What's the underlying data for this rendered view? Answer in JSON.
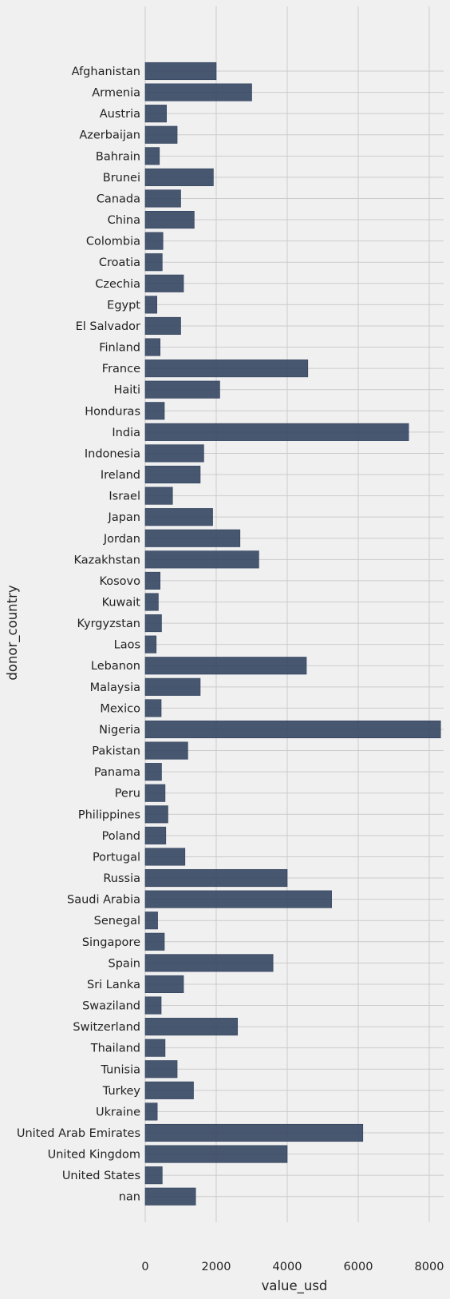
{
  "chart_data": {
    "type": "bar",
    "orientation": "horizontal",
    "xlabel": "value_usd",
    "ylabel": "donor_country",
    "xlim": [
      0,
      8700
    ],
    "xticks": [
      0,
      2000,
      4000,
      6000,
      8000
    ],
    "grid": true,
    "color": "#30415d",
    "categories": [
      "Afghanistan",
      "Armenia",
      "Austria",
      "Azerbaijan",
      "Bahrain",
      "Brunei",
      "Canada",
      "China",
      "Colombia",
      "Croatia",
      "Czechia",
      "Egypt",
      "El Salvador",
      "Finland",
      "France",
      "Haiti",
      "Honduras",
      "India",
      "Indonesia",
      "Ireland",
      "Israel",
      "Japan",
      "Jordan",
      "Kazakhstan",
      "Kosovo",
      "Kuwait",
      "Kyrgyzstan",
      "Laos",
      "Lebanon",
      "Malaysia",
      "Mexico",
      "Nigeria",
      "Pakistan",
      "Panama",
      "Peru",
      "Philippines",
      "Poland",
      "Portugal",
      "Russia",
      "Saudi Arabia",
      "Senegal",
      "Singapore",
      "Spain",
      "Sri Lanka",
      "Swaziland",
      "Switzerland",
      "Thailand",
      "Tunisia",
      "Turkey",
      "Ukraine",
      "United Arab Emirates",
      "United Kingdom",
      "United States",
      "nan"
    ],
    "values": [
      2000,
      3000,
      600,
      900,
      400,
      1920,
      1000,
      1380,
      500,
      480,
      1080,
      330,
      1000,
      420,
      4580,
      2100,
      540,
      7420,
      1650,
      1550,
      770,
      1900,
      2670,
      3200,
      420,
      370,
      460,
      310,
      4540,
      1550,
      450,
      8320,
      1200,
      460,
      560,
      640,
      580,
      1120,
      4000,
      5250,
      350,
      540,
      3600,
      1080,
      450,
      2600,
      560,
      900,
      1360,
      340,
      6130,
      4000,
      480,
      1420
    ]
  }
}
